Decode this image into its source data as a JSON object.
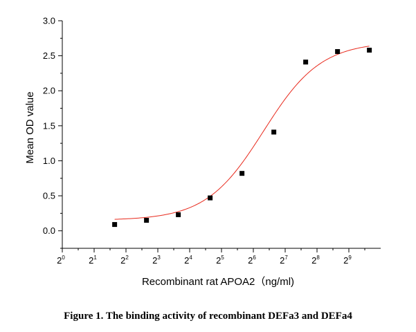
{
  "caption": "Figure 1. The binding activity of recombinant DEFa3 and DEFa4",
  "chart_data": {
    "type": "scatter",
    "xlabel": "Recombinant rat  APOA2（ng/ml)",
    "ylabel": "Mean OD value",
    "xscale": "log2",
    "xlim_exponent": [
      0,
      10
    ],
    "x_tick_base": "2",
    "x_tick_exponents": [
      "0",
      "1",
      "2",
      "3",
      "4",
      "5",
      "6",
      "7",
      "8",
      "9"
    ],
    "ylim": [
      -0.25,
      3.0
    ],
    "y_ticks": [
      "0.0",
      "0.5",
      "1.0",
      "1.5",
      "2.0",
      "2.5",
      "3.0"
    ],
    "grid": false,
    "series": [
      {
        "marker": "square",
        "color": "#000000",
        "x": [
          3.125,
          6.25,
          12.5,
          25,
          50,
          100,
          200,
          400,
          800
        ],
        "y": [
          0.09,
          0.15,
          0.23,
          0.47,
          0.82,
          1.41,
          2.41,
          2.56,
          2.58
        ]
      }
    ],
    "fit": {
      "type": "4PL",
      "color": "#e8291c",
      "bottom": 0.15,
      "top": 2.7,
      "ec50": 80,
      "hill": 1.6,
      "x_range": [
        3.125,
        800
      ]
    }
  }
}
